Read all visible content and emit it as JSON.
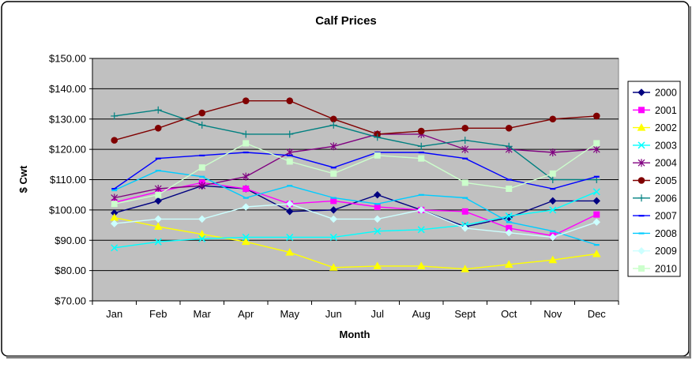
{
  "chart_data": {
    "type": "line",
    "title": "Calf Prices",
    "xlabel": "Month",
    "ylabel": "$ Cwt",
    "categories": [
      "Jan",
      "Feb",
      "Mar",
      "Apr",
      "May",
      "Jun",
      "Jul",
      "Aug",
      "Sept",
      "Oct",
      "Nov",
      "Dec"
    ],
    "ylim": [
      70,
      150
    ],
    "ytick_step": 10,
    "ytick_labels": [
      "$70.00",
      "$80.00",
      "$90.00",
      "$100.00",
      "$110.00",
      "$120.00",
      "$130.00",
      "$140.00",
      "$150.00"
    ],
    "grid": true,
    "legend_position": "right",
    "plot_background": "#c0c0c0",
    "series": [
      {
        "name": "2000",
        "color": "#000080",
        "marker": "diamond",
        "values": [
          99,
          103,
          108,
          107,
          99.5,
          100,
          105,
          100,
          94.5,
          97.5,
          103,
          103
        ]
      },
      {
        "name": "2001",
        "color": "#ff00ff",
        "marker": "square",
        "values": [
          102.5,
          106,
          109,
          107,
          102,
          103,
          101,
          100,
          99.5,
          94,
          91.5,
          98.5
        ]
      },
      {
        "name": "2002",
        "color": "#ffff00",
        "marker": "triangle",
        "values": [
          97.5,
          94.5,
          92,
          89.5,
          86,
          81,
          81.5,
          81.5,
          80.5,
          82,
          83.5,
          85.5
        ]
      },
      {
        "name": "2003",
        "color": "#00ffff",
        "marker": "x",
        "values": [
          87.5,
          89.5,
          90.5,
          91,
          91,
          91,
          93,
          93.5,
          95,
          98,
          100,
          106
        ]
      },
      {
        "name": "2004",
        "color": "#800080",
        "marker": "star",
        "values": [
          104,
          107,
          108,
          111,
          119,
          121,
          125,
          125,
          120,
          120,
          119,
          120
        ]
      },
      {
        "name": "2005",
        "color": "#800000",
        "marker": "circle",
        "values": [
          123,
          127,
          132,
          136,
          136,
          130,
          125,
          126,
          127,
          127,
          130,
          131
        ]
      },
      {
        "name": "2006",
        "color": "#008080",
        "marker": "plus",
        "values": [
          131,
          133,
          128,
          125,
          125,
          128,
          124,
          121,
          123,
          121,
          110,
          110
        ]
      },
      {
        "name": "2007",
        "color": "#0000ff",
        "marker": "dash",
        "values": [
          107,
          117,
          118,
          119,
          118,
          114,
          119,
          119,
          117,
          110,
          107,
          111
        ]
      },
      {
        "name": "2008",
        "color": "#00ccff",
        "marker": "dash",
        "values": [
          106.5,
          113,
          111,
          104,
          108,
          104,
          102,
          105,
          104,
          96,
          93,
          88.5
        ]
      },
      {
        "name": "2009",
        "color": "#ccffff",
        "marker": "diamond",
        "values": [
          95.5,
          97,
          97,
          101,
          102,
          97,
          97,
          100,
          94,
          92.5,
          91,
          96
        ]
      },
      {
        "name": "2010",
        "color": "#ccffcc",
        "marker": "square",
        "values": [
          102,
          105,
          114,
          122,
          116,
          112,
          118,
          117,
          109,
          107,
          112,
          122
        ]
      }
    ]
  }
}
